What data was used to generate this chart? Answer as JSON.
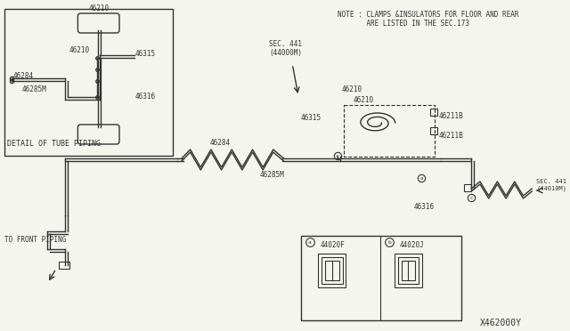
{
  "bg_color": "#f5f5f0",
  "line_color": "#333333",
  "text_color": "#333333",
  "title_note": "NOTE : CLAMPS &INSULATORS FOR FLOOR AND REAR\n       ARE LISTED IN THE SEC.173",
  "diagram_title": "DETAIL OF TUBE PIPING",
  "part_id": "X462000Y",
  "labels": {
    "46210_top": "46210",
    "46210_mid": "46210",
    "46210_main1": "46210",
    "46210_main2": "46210",
    "46284": "46284",
    "46285M_detail": "46285M",
    "46285M_main": "46285M",
    "46315_detail": "46315",
    "46315_main": "46315",
    "46316_detail": "46316",
    "46316_main": "46316",
    "46211B_top": "46211B",
    "46211B_bot": "46211B",
    "44020F": "44020F",
    "44020J": "44020J",
    "sec441_top": "SEC. 441\n(44000M)",
    "sec441_bot": "SEC. 441\n(44010M)",
    "front_piping": "TO FRONT PIPING"
  }
}
